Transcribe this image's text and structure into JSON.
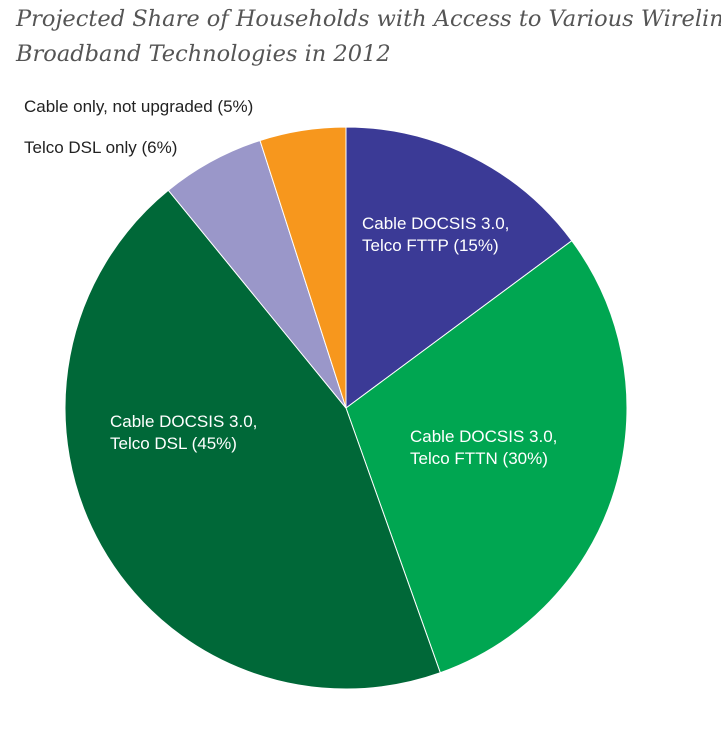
{
  "chart_data": {
    "type": "pie",
    "title_lines": [
      "Projected Share of Households with Access to Various Wireline",
      "Broadband Technologies in 2012"
    ],
    "slices": [
      {
        "label_lines": [
          "Cable DOCSIS 3.0,",
          "Telco FTTP (15%)"
        ],
        "value": 15,
        "color": "#3b3a96",
        "label_color": "#ffffff"
      },
      {
        "label_lines": [
          "Cable DOCSIS 3.0,",
          "Telco FTTN (30%)"
        ],
        "value": 30,
        "color": "#00a651",
        "label_color": "#ffffff"
      },
      {
        "label_lines": [
          "Cable DOCSIS 3.0,",
          "Telco DSL (45%)"
        ],
        "value": 45,
        "color": "#006838",
        "label_color": "#ffffff"
      },
      {
        "label_lines": [
          "Telco DSL only (6%)"
        ],
        "value": 6,
        "color": "#9a97c9",
        "label_color": "#222222"
      },
      {
        "label_lines": [
          "Cable only, not upgraded (5%)"
        ],
        "value": 5,
        "color": "#f7971d",
        "label_color": "#222222"
      }
    ]
  }
}
